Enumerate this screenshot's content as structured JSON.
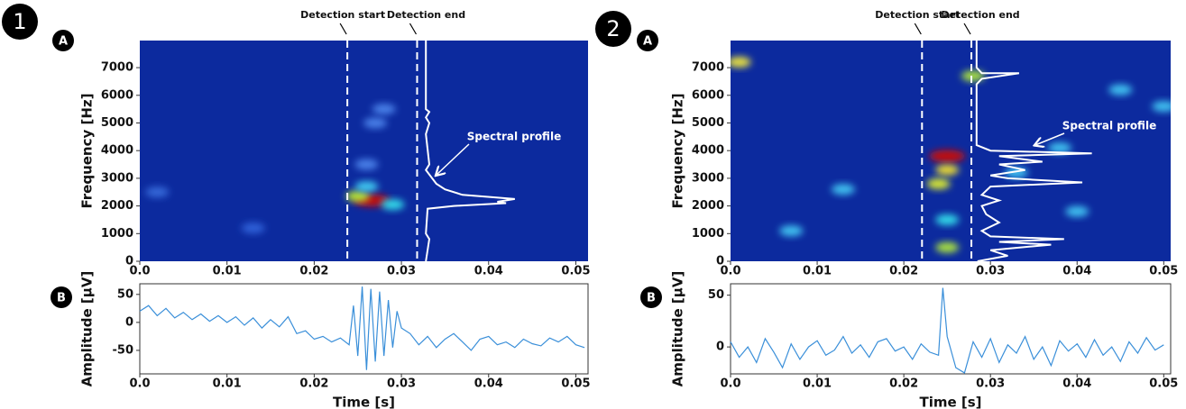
{
  "figure_labels": [
    "1",
    "2"
  ],
  "chart_data": [
    {
      "type": "spectrogram",
      "badge": "A",
      "ylabel": "Frequency [Hz]",
      "color": "#0c2a9e",
      "xlim": [
        0,
        0.0514
      ],
      "ylim": [
        0,
        7980
      ],
      "xticks": [
        {
          "value": 0,
          "label": "0.0"
        },
        0.01,
        0.02,
        0.03,
        0.04,
        0.05
      ],
      "yticks": [
        0,
        1000,
        2000,
        3000,
        4000,
        5000,
        6000,
        7000
      ],
      "detections": [
        {
          "label": "Detection start",
          "x": 0.0238
        },
        {
          "label": "Detection end",
          "x": 0.0318
        }
      ],
      "profile": {
        "label": "Spectral profile",
        "x": [
          0.0328,
          0.0328,
          0.0332,
          0.0328,
          0.0332,
          0.0328,
          0.0332,
          0.0328,
          0.034,
          0.035,
          0.037,
          0.043,
          0.041,
          0.042,
          0.036,
          0.033,
          0.0328,
          0.0332,
          0.0328
        ],
        "y": [
          7980,
          5500,
          5400,
          5200,
          5000,
          4600,
          3500,
          3300,
          2800,
          2600,
          2400,
          2250,
          2150,
          2100,
          2000,
          1900,
          1000,
          800,
          0
        ]
      },
      "hotspots": {
        "x": [
          0.0266,
          0.025,
          0.029,
          0.026,
          0.027,
          0.028,
          0.026,
          0.013,
          0.002
        ],
        "y": [
          2200,
          2350,
          2050,
          2700,
          5000,
          5500,
          3500,
          1200,
          2500
        ],
        "colors": [
          "#c01010",
          "#b8e830",
          "#30d8e8",
          "#40c8f0",
          "#4a80e8",
          "#4a80e8",
          "#4a80e8",
          "#2f60d8",
          "#3468d8"
        ]
      }
    },
    {
      "type": "line",
      "badge": "B",
      "xlabel": "Time [s]",
      "ylabel": "Amplitude [µV]",
      "color": "#3a8fd9",
      "xlim": [
        0,
        0.0514
      ],
      "ylim": [
        -92,
        69
      ],
      "xticks": [
        {
          "value": 0,
          "label": "0.0"
        },
        0.01,
        0.02,
        0.03,
        0.04,
        0.05
      ],
      "yticks": [
        -50,
        0,
        50
      ],
      "x": [
        0,
        0.001,
        0.002,
        0.003,
        0.004,
        0.005,
        0.006,
        0.007,
        0.008,
        0.009,
        0.01,
        0.011,
        0.012,
        0.013,
        0.014,
        0.015,
        0.016,
        0.017,
        0.018,
        0.019,
        0.02,
        0.021,
        0.022,
        0.023,
        0.024,
        0.0245,
        0.025,
        0.0255,
        0.026,
        0.0265,
        0.027,
        0.0275,
        0.028,
        0.0285,
        0.029,
        0.0295,
        0.03,
        0.031,
        0.032,
        0.033,
        0.034,
        0.035,
        0.036,
        0.037,
        0.038,
        0.039,
        0.04,
        0.041,
        0.042,
        0.043,
        0.044,
        0.045,
        0.046,
        0.047,
        0.048,
        0.049,
        0.05,
        0.051
      ],
      "values": [
        20,
        30,
        12,
        25,
        8,
        18,
        5,
        15,
        2,
        12,
        0,
        10,
        -5,
        8,
        -10,
        5,
        -8,
        10,
        -20,
        -15,
        -30,
        -25,
        -35,
        -28,
        -40,
        30,
        -60,
        64,
        -85,
        60,
        -70,
        55,
        -60,
        40,
        -45,
        20,
        -10,
        -20,
        -40,
        -25,
        -45,
        -30,
        -20,
        -35,
        -50,
        -30,
        -25,
        -40,
        -35,
        -45,
        -30,
        -38,
        -42,
        -28,
        -35,
        -25,
        -40,
        -45
      ]
    },
    {
      "type": "spectrogram",
      "badge": "A",
      "ylabel": "Frequency [Hz]",
      "color": "#0c2a9e",
      "xlim": [
        0,
        0.0508
      ],
      "ylim": [
        0,
        7980
      ],
      "xticks": [
        {
          "value": 0,
          "label": "0.0"
        },
        0.01,
        0.02,
        0.03,
        0.04,
        0.05
      ],
      "yticks": [
        0,
        1000,
        2000,
        3000,
        4000,
        5000,
        6000,
        7000
      ],
      "detections": [
        {
          "label": "Detection start",
          "x": 0.0221
        },
        {
          "label": "Detection end",
          "x": 0.0278
        }
      ],
      "profile": {
        "label": "Spectral profile",
        "x": [
          0.0284,
          0.0284,
          0.029,
          0.0333,
          0.029,
          0.0284,
          0.0284,
          0.03,
          0.0417,
          0.031,
          0.036,
          0.031,
          0.034,
          0.03,
          0.032,
          0.0406,
          0.03,
          0.029,
          0.031,
          0.029,
          0.0295,
          0.031,
          0.029,
          0.03,
          0.0385,
          0.031,
          0.037,
          0.03,
          0.032,
          0.0285
        ],
        "y": [
          7980,
          7000,
          6800,
          6800,
          6600,
          6400,
          4200,
          4000,
          3900,
          3800,
          3600,
          3500,
          3300,
          3100,
          3000,
          2850,
          2700,
          2400,
          2200,
          2000,
          1700,
          1400,
          1100,
          900,
          800,
          700,
          600,
          400,
          200,
          0
        ]
      },
      "hotspots": {
        "x": [
          0.025,
          0.025,
          0.024,
          0.028,
          0.025,
          0.025,
          0.001,
          0.013,
          0.033,
          0.045,
          0.05,
          0.04,
          0.007,
          0.038
        ],
        "y": [
          3800,
          3300,
          2800,
          6700,
          500,
          1500,
          7200,
          2600,
          3200,
          6200,
          5600,
          1800,
          1100,
          4100
        ],
        "colors": [
          "#c01010",
          "#e8d830",
          "#d8e830",
          "#a8e040",
          "#a8e040",
          "#30d8e8",
          "#e8e040",
          "#40c0f0",
          "#40c0f0",
          "#40c0f0",
          "#40c0f0",
          "#40c0f0",
          "#40c0f0",
          "#40c0f0"
        ]
      }
    },
    {
      "type": "line",
      "badge": "B",
      "xlabel": "Time [s]",
      "ylabel": "Amplitude [µV]",
      "color": "#3a8fd9",
      "xlim": [
        0,
        0.0508
      ],
      "ylim": [
        -26,
        61
      ],
      "xticks": [
        {
          "value": 0,
          "label": "0.0"
        },
        0.01,
        0.02,
        0.03,
        0.04,
        0.05
      ],
      "yticks": [
        0,
        50
      ],
      "x": [
        0,
        0.001,
        0.002,
        0.003,
        0.004,
        0.005,
        0.006,
        0.007,
        0.008,
        0.009,
        0.01,
        0.011,
        0.012,
        0.013,
        0.014,
        0.015,
        0.016,
        0.017,
        0.018,
        0.019,
        0.02,
        0.021,
        0.022,
        0.023,
        0.024,
        0.0245,
        0.025,
        0.026,
        0.027,
        0.028,
        0.029,
        0.03,
        0.031,
        0.032,
        0.033,
        0.034,
        0.035,
        0.036,
        0.037,
        0.038,
        0.039,
        0.04,
        0.041,
        0.042,
        0.043,
        0.044,
        0.045,
        0.046,
        0.047,
        0.048,
        0.049,
        0.05
      ],
      "values": [
        5,
        -10,
        0,
        -15,
        8,
        -5,
        -20,
        3,
        -12,
        0,
        6,
        -8,
        -3,
        10,
        -6,
        2,
        -10,
        5,
        8,
        -4,
        0,
        -12,
        3,
        -5,
        -8,
        57,
        10,
        -20,
        -25,
        5,
        -10,
        8,
        -15,
        2,
        -6,
        10,
        -12,
        0,
        -18,
        6,
        -4,
        3,
        -10,
        7,
        -8,
        0,
        -14,
        5,
        -6,
        9,
        -3,
        2
      ]
    }
  ]
}
